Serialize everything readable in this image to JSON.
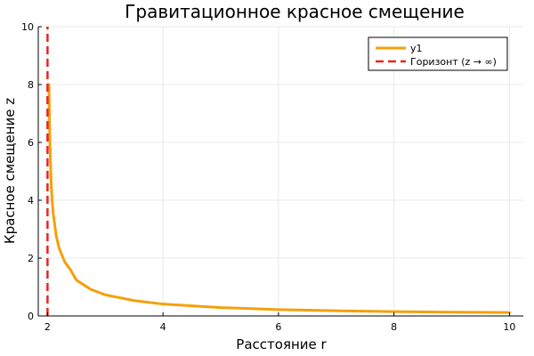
{
  "chart_data": {
    "type": "line",
    "title": "Гравитационное красное смещение",
    "xlabel": "Расстояние r",
    "ylabel": "Красное смещение z",
    "xlim": [
      1.84,
      10.24
    ],
    "ylim": [
      0,
      10
    ],
    "xticks": [
      2,
      4,
      6,
      8,
      10
    ],
    "xtick_labels": [
      "2",
      "4",
      "6",
      "8",
      "10"
    ],
    "yticks": [
      0,
      2,
      4,
      6,
      8,
      10
    ],
    "ytick_labels": [
      "0",
      "2",
      "4",
      "6",
      "8",
      "10"
    ],
    "grid": true,
    "legend_position": "top-right",
    "series": [
      {
        "name": "y1",
        "color": "#f5a00a",
        "style": "solid",
        "x": [
          2.025,
          2.03,
          2.04,
          2.06,
          2.08,
          2.1,
          2.15,
          2.2,
          2.3,
          2.4,
          2.5,
          2.75,
          3.0,
          3.5,
          4.0,
          5.0,
          6.0,
          7.0,
          8.0,
          9.0,
          10.0
        ],
        "y": [
          8.0,
          7.3,
          6.1,
          4.74,
          4.0,
          3.53,
          2.78,
          2.35,
          1.86,
          1.59,
          1.24,
          0.92,
          0.73,
          0.53,
          0.41,
          0.29,
          0.22,
          0.18,
          0.15,
          0.13,
          0.12
        ]
      },
      {
        "name": "Горизонт (z → ∞)",
        "color": "#e8251f",
        "style": "dashed",
        "x": [
          2,
          2
        ],
        "y": [
          0,
          10
        ]
      }
    ]
  }
}
